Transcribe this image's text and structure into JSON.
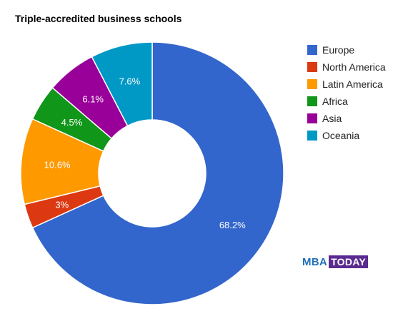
{
  "chart_data": {
    "type": "pie",
    "title": "Triple-accredited business schools",
    "legend_position": "right",
    "donut": true,
    "slices": [
      {
        "name": "Europe",
        "value": 68.2,
        "label": "68.2%",
        "color": "#3366cc"
      },
      {
        "name": "North America",
        "value": 3.0,
        "label": "3%",
        "color": "#dc3912"
      },
      {
        "name": "Latin America",
        "value": 10.6,
        "label": "10.6%",
        "color": "#ff9900"
      },
      {
        "name": "Africa",
        "value": 4.5,
        "label": "4.5%",
        "color": "#109618"
      },
      {
        "name": "Asia",
        "value": 6.1,
        "label": "6.1%",
        "color": "#990099"
      },
      {
        "name": "Oceania",
        "value": 7.6,
        "label": "7.6%",
        "color": "#0099c6"
      }
    ]
  },
  "logo": {
    "part1": "MBA",
    "part2": "TODAY"
  }
}
